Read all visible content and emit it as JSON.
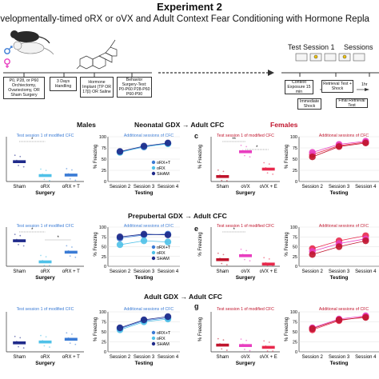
{
  "header": {
    "title": "Experiment 2",
    "subtitle": "evelopmentally-timed oRX or oVX and Adult Context Fear Conditioning with Hormone Repla"
  },
  "flow": {
    "procedure": "P0, P28, or P60 Orchiectomy, Ovariectomy, OR Sham Surgery",
    "handling": "3 Days Handling",
    "implant": "Hormone Implant (TP OR 17β) OR Saline",
    "behavior": "Behavior Surgery-Test: P0-P60 P28-P60 P60-P90",
    "test_session": "Test Session 1",
    "sessions": "Sessions",
    "context": "Context Exposure 15 min",
    "retrieval": "Retrieval Test + Shock",
    "immediate": "Immediate Shock",
    "final": "Final Retrieval Test",
    "hr": "1hr"
  },
  "labels": {
    "males": "Males",
    "females": "Females",
    "row1": "Neonatal GDX → Adult CFC",
    "row2": "Prepubertal GDX → Adult CFC",
    "row3": "Adult GDX → Adult CFC",
    "test_session_title": "Test session 1 of modified CFC",
    "additional_title": "Additional sessions of CFC",
    "surgery": "Surgery",
    "testing": "Testing",
    "pct_freezing": "% Freezing",
    "letter_c": "c",
    "letter_e": "e",
    "letter_g": "g"
  },
  "colors": {
    "male_sham": "#1f2a8a",
    "male_orx": "#4fc1e8",
    "male_orx_t": "#3a7bd5",
    "female_sham": "#c0142c",
    "female_ovx": "#e83ec0",
    "female_ovx_e": "#e8294c",
    "grid": "#d9d9d9"
  },
  "chart_data": [
    {
      "type": "scatter",
      "panel": "male-neonatal-session1",
      "categories": [
        "Sham",
        "oRX",
        "oRX + T"
      ],
      "values": [
        40,
        12,
        13
      ],
      "ylim": [
        0,
        100
      ],
      "significance": [
        "*"
      ]
    },
    {
      "type": "line",
      "panel": "male-neonatal-additional",
      "categories": [
        "Session 2",
        "Session 3",
        "Session 4"
      ],
      "yticks": [
        0,
        25,
        50,
        75,
        100
      ],
      "ylim": [
        0,
        100
      ],
      "series": [
        {
          "name": "oRX+T",
          "values": [
            66,
            77,
            85
          ]
        },
        {
          "name": "oRX",
          "values": [
            65,
            78,
            84
          ]
        },
        {
          "name": "SHAM",
          "values": [
            67,
            79,
            86
          ]
        }
      ]
    },
    {
      "type": "scatter",
      "panel": "female-neonatal-session1",
      "categories": [
        "Sham",
        "oVX",
        "oVX + E"
      ],
      "values": [
        10,
        60,
        25
      ],
      "ylim": [
        0,
        100
      ],
      "significance": [
        "**",
        "*"
      ]
    },
    {
      "type": "line",
      "panel": "female-neonatal-additional",
      "categories": [
        "Session 2",
        "Session 3",
        "Session 4"
      ],
      "yticks": [
        0,
        25,
        50,
        75,
        100
      ],
      "ylim": [
        0,
        100
      ],
      "series": [
        {
          "values": [
            60,
            80,
            88
          ]
        },
        {
          "values": [
            65,
            83,
            90
          ]
        },
        {
          "values": [
            55,
            78,
            86
          ]
        }
      ]
    },
    {
      "type": "scatter",
      "panel": "male-prepubertal-session1",
      "categories": [
        "Sham",
        "oRX",
        "oRX + T"
      ],
      "values": [
        58,
        10,
        32
      ],
      "ylim": [
        0,
        100
      ],
      "significance": [
        "*",
        "*"
      ]
    },
    {
      "type": "line",
      "panel": "male-prepubertal-additional",
      "categories": [
        "Session 2",
        "Session 3",
        "Session 4"
      ],
      "yticks": [
        0,
        25,
        50,
        75,
        100
      ],
      "ylim": [
        0,
        100
      ],
      "series": [
        {
          "name": "oRX+T",
          "values": [
            72,
            80,
            82
          ]
        },
        {
          "name": "oRX",
          "values": [
            55,
            65,
            62
          ]
        },
        {
          "name": "SHAM",
          "values": [
            75,
            82,
            80
          ]
        }
      ]
    },
    {
      "type": "scatter",
      "panel": "female-prepubertal-session1",
      "categories": [
        "Sham",
        "oVX",
        "oVX + E"
      ],
      "values": [
        15,
        24,
        5
      ],
      "ylim": [
        0,
        100
      ],
      "significance": [
        "*"
      ]
    },
    {
      "type": "line",
      "panel": "female-prepubertal-additional",
      "categories": [
        "Session 2",
        "Session 3",
        "Session 4"
      ],
      "yticks": [
        0,
        25,
        50,
        75,
        100
      ],
      "ylim": [
        0,
        100
      ],
      "series": [
        {
          "values": [
            45,
            65,
            78
          ]
        },
        {
          "values": [
            38,
            58,
            70
          ]
        },
        {
          "values": [
            30,
            50,
            65
          ]
        }
      ]
    },
    {
      "type": "scatter",
      "panel": "male-adult-session1",
      "categories": [
        "Sham",
        "oRX",
        "oRX + T"
      ],
      "values": [
        20,
        22,
        28
      ],
      "ylim": [
        0,
        100
      ],
      "significance": []
    },
    {
      "type": "line",
      "panel": "male-adult-additional",
      "categories": [
        "Session 2",
        "Session 3",
        "Session 4"
      ],
      "yticks": [
        0,
        25,
        50,
        75,
        100
      ],
      "ylim": [
        0,
        100
      ],
      "series": [
        {
          "name": "oRX+T",
          "values": [
            58,
            78,
            85
          ]
        },
        {
          "name": "oRX",
          "values": [
            55,
            75,
            82
          ]
        },
        {
          "name": "SHAM",
          "values": [
            60,
            80,
            88
          ]
        }
      ]
    },
    {
      "type": "scatter",
      "panel": "female-adult-session1",
      "categories": [
        "Sham",
        "oVX",
        "oVX + E"
      ],
      "values": [
        15,
        14,
        10
      ],
      "ylim": [
        0,
        100
      ],
      "significance": []
    },
    {
      "type": "line",
      "panel": "female-adult-additional",
      "categories": [
        "Session 2",
        "Session 3",
        "Session 4"
      ],
      "yticks": [
        0,
        25,
        50,
        75,
        100
      ],
      "ylim": [
        0,
        100
      ],
      "series": [
        {
          "values": [
            55,
            78,
            88
          ]
        },
        {
          "values": [
            60,
            82,
            90
          ]
        },
        {
          "values": [
            58,
            80,
            86
          ]
        }
      ]
    }
  ]
}
